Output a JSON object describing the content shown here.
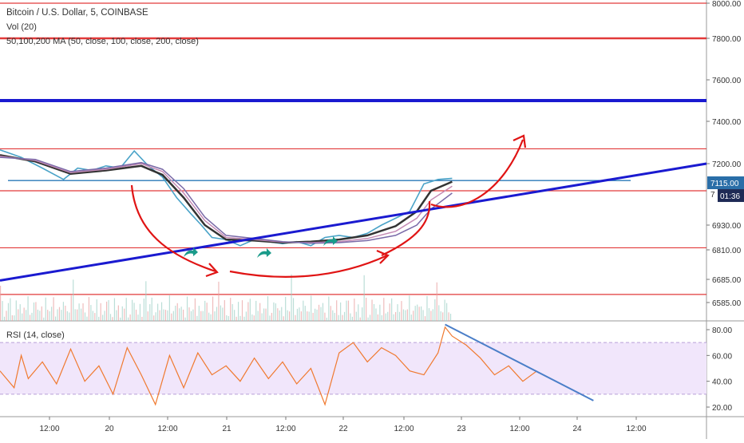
{
  "header": {
    "title": "Bitcoin / U.S. Dollar, 5, COINBASE",
    "volume": "Vol (20)",
    "ma": "50,100,200 MA (50, close, 100, close, 200, close)",
    "rsi": "RSI (14, close)"
  },
  "colors": {
    "price_line": "#4aa3c8",
    "ma_black": "#333333",
    "ma_pink": "#c48ab4",
    "ma_purple": "#7a6aa8",
    "red_level": "#e23a3a",
    "blue_trend": "#1a1ad0",
    "horizontal_blue": "#2a7ab8",
    "rsi_line": "#f07a30",
    "rsi_band": "#f1e6fb",
    "arrow_red": "#e01414",
    "arrow_green": "#1a9b8a",
    "current_price_bg": "#2a6ea8",
    "timer_bg": "#1e2a55"
  },
  "chart_data": [
    {
      "type": "line",
      "name": "price-panel",
      "x_ticks": [
        "12:00",
        "20",
        "12:00",
        "21",
        "12:00",
        "22",
        "12:00",
        "23",
        "12:00",
        "24",
        "12:00"
      ],
      "y_ticks": [
        8000,
        7800,
        7600,
        7400,
        7200,
        6930,
        6810,
        6685,
        6585
      ],
      "y_tick_labels": [
        "8000.00",
        "7800.00",
        "7600.00",
        "7400.00",
        "7200.00",
        "6930.00",
        "6810.00",
        "6685.00",
        "6585.00"
      ],
      "ylim": [
        6530,
        8010
      ],
      "xlim": [
        0,
        1
      ],
      "current_price_label": "7115.00",
      "timer_label": "01:36",
      "partial_label": "7",
      "price_series": [
        [
          0.0,
          7265
        ],
        [
          0.03,
          7230
        ],
        [
          0.06,
          7180
        ],
        [
          0.09,
          7130
        ],
        [
          0.11,
          7180
        ],
        [
          0.13,
          7170
        ],
        [
          0.15,
          7190
        ],
        [
          0.17,
          7180
        ],
        [
          0.19,
          7260
        ],
        [
          0.21,
          7190
        ],
        [
          0.23,
          7140
        ],
        [
          0.25,
          7050
        ],
        [
          0.27,
          6980
        ],
        [
          0.285,
          6930
        ],
        [
          0.3,
          6870
        ],
        [
          0.32,
          6860
        ],
        [
          0.34,
          6830
        ],
        [
          0.36,
          6860
        ],
        [
          0.38,
          6850
        ],
        [
          0.4,
          6840
        ],
        [
          0.42,
          6850
        ],
        [
          0.44,
          6830
        ],
        [
          0.46,
          6870
        ],
        [
          0.48,
          6880
        ],
        [
          0.5,
          6870
        ],
        [
          0.52,
          6890
        ],
        [
          0.54,
          6930
        ],
        [
          0.56,
          6960
        ],
        [
          0.58,
          6990
        ],
        [
          0.6,
          7110
        ],
        [
          0.62,
          7130
        ],
        [
          0.64,
          7135
        ]
      ],
      "ma_series": [
        {
          "values": [
            [
              0.0,
              7240
            ],
            [
              0.05,
              7210
            ],
            [
              0.1,
              7155
            ],
            [
              0.15,
              7170
            ],
            [
              0.2,
              7190
            ],
            [
              0.23,
              7150
            ],
            [
              0.26,
              7050
            ],
            [
              0.29,
              6930
            ],
            [
              0.32,
              6860
            ],
            [
              0.36,
              6855
            ],
            [
              0.4,
              6845
            ],
            [
              0.44,
              6850
            ],
            [
              0.48,
              6860
            ],
            [
              0.52,
              6880
            ],
            [
              0.56,
              6925
            ],
            [
              0.59,
              6990
            ],
            [
              0.61,
              7080
            ],
            [
              0.64,
              7120
            ]
          ]
        },
        {
          "values": [
            [
              0.0,
              7235
            ],
            [
              0.05,
              7215
            ],
            [
              0.1,
              7160
            ],
            [
              0.15,
              7175
            ],
            [
              0.2,
              7200
            ],
            [
              0.23,
              7165
            ],
            [
              0.26,
              7070
            ],
            [
              0.29,
              6950
            ],
            [
              0.32,
              6870
            ],
            [
              0.36,
              6860
            ],
            [
              0.4,
              6848
            ],
            [
              0.44,
              6845
            ],
            [
              0.48,
              6850
            ],
            [
              0.52,
              6865
            ],
            [
              0.56,
              6900
            ],
            [
              0.59,
              6960
            ],
            [
              0.61,
              7040
            ],
            [
              0.64,
              7100
            ]
          ]
        },
        {
          "values": [
            [
              0.0,
              7230
            ],
            [
              0.05,
              7220
            ],
            [
              0.1,
              7165
            ],
            [
              0.15,
              7180
            ],
            [
              0.2,
              7205
            ],
            [
              0.23,
              7175
            ],
            [
              0.26,
              7090
            ],
            [
              0.29,
              6965
            ],
            [
              0.32,
              6880
            ],
            [
              0.36,
              6865
            ],
            [
              0.4,
              6850
            ],
            [
              0.44,
              6842
            ],
            [
              0.48,
              6845
            ],
            [
              0.52,
              6855
            ],
            [
              0.56,
              6880
            ],
            [
              0.59,
              6930
            ],
            [
              0.61,
              7000
            ],
            [
              0.64,
              7070
            ]
          ]
        }
      ],
      "horizontal_levels_red": [
        7800,
        7270,
        7080,
        6820,
        6620,
        8000
      ],
      "horizontal_level_blue": 7500,
      "horizontal_level_thin": 7125,
      "trendline": {
        "x": [
          0.0,
          1.0
        ],
        "y": [
          6680,
          7200
        ]
      }
    },
    {
      "type": "line",
      "name": "rsi-panel",
      "y_ticks": [
        80,
        60,
        40,
        20
      ],
      "y_tick_labels": [
        "80.00",
        "60.00",
        "40.00",
        "20.00"
      ],
      "ylim": [
        15,
        85
      ],
      "band": [
        30,
        70
      ],
      "series": [
        [
          0.0,
          48
        ],
        [
          0.02,
          35
        ],
        [
          0.03,
          60
        ],
        [
          0.04,
          42
        ],
        [
          0.06,
          55
        ],
        [
          0.08,
          38
        ],
        [
          0.1,
          65
        ],
        [
          0.12,
          40
        ],
        [
          0.14,
          52
        ],
        [
          0.16,
          30
        ],
        [
          0.18,
          66
        ],
        [
          0.2,
          45
        ],
        [
          0.22,
          22
        ],
        [
          0.24,
          60
        ],
        [
          0.26,
          35
        ],
        [
          0.28,
          62
        ],
        [
          0.3,
          45
        ],
        [
          0.32,
          52
        ],
        [
          0.34,
          40
        ],
        [
          0.36,
          58
        ],
        [
          0.38,
          42
        ],
        [
          0.4,
          55
        ],
        [
          0.42,
          38
        ],
        [
          0.44,
          50
        ],
        [
          0.46,
          22
        ],
        [
          0.48,
          62
        ],
        [
          0.5,
          70
        ],
        [
          0.52,
          55
        ],
        [
          0.54,
          66
        ],
        [
          0.56,
          60
        ],
        [
          0.58,
          48
        ],
        [
          0.6,
          45
        ],
        [
          0.62,
          62
        ],
        [
          0.63,
          82
        ],
        [
          0.64,
          75
        ],
        [
          0.66,
          68
        ],
        [
          0.68,
          58
        ],
        [
          0.7,
          45
        ],
        [
          0.72,
          52
        ],
        [
          0.74,
          40
        ],
        [
          0.76,
          48
        ]
      ],
      "trendline": {
        "x": [
          0.63,
          0.84
        ],
        "y": [
          84,
          25
        ]
      }
    }
  ]
}
